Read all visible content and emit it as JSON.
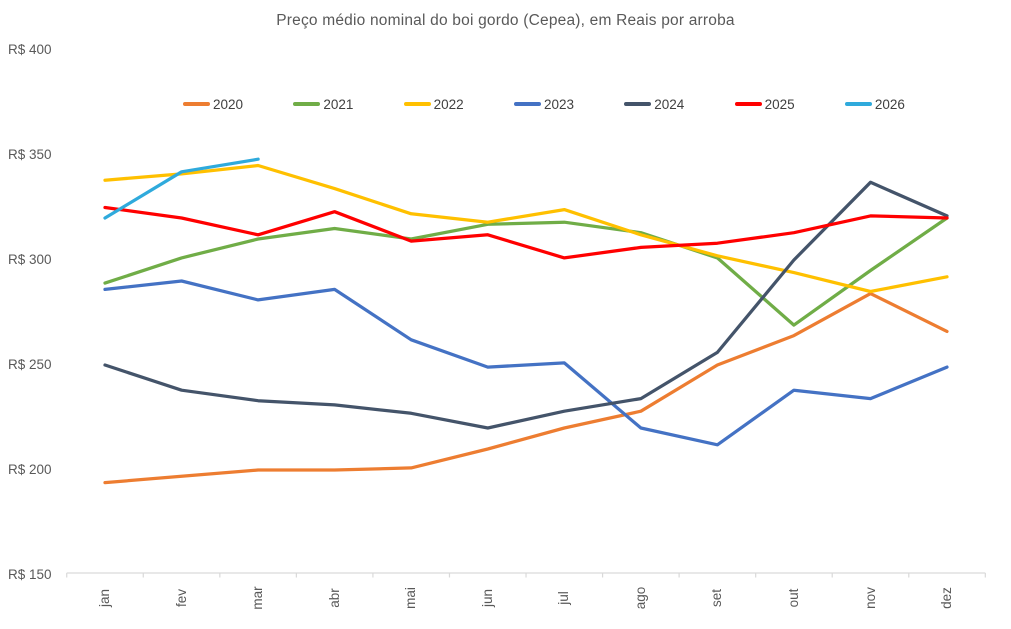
{
  "title": "Preço médio nominal do boi gordo (Cepea), em Reais por arroba",
  "colors": {
    "axis": "#D9D9D9",
    "text": "#595959",
    "legend_text": "#404040"
  },
  "chart_data": {
    "type": "line",
    "title": "Preço médio nominal do boi gordo (Cepea), em Reais por arroba",
    "xlabel": "",
    "ylabel": "Reais por arroba",
    "ylim": [
      150,
      400
    ],
    "grid": false,
    "legend_position": "top",
    "categories": [
      "jan",
      "fev",
      "mar",
      "abr",
      "mai",
      "jun",
      "jul",
      "ago",
      "set",
      "out",
      "nov",
      "dez"
    ],
    "y_ticks": [
      {
        "label": "R$ 400",
        "value": 400
      },
      {
        "label": "R$ 350",
        "value": 350
      },
      {
        "label": "R$ 300",
        "value": 300
      },
      {
        "label": "R$ 250",
        "value": 250
      },
      {
        "label": "R$ 200",
        "value": 200
      },
      {
        "label": "R$ 150",
        "value": 150
      }
    ],
    "series": [
      {
        "name": "2020",
        "color": "#ED7D31",
        "values": [
          194,
          197,
          200,
          200,
          201,
          210,
          220,
          228,
          250,
          264,
          284,
          266
        ]
      },
      {
        "name": "2021",
        "color": "#70AD47",
        "values": [
          289,
          301,
          310,
          315,
          310,
          317,
          318,
          313,
          301,
          269,
          295,
          320
        ]
      },
      {
        "name": "2022",
        "color": "#FFC000",
        "values": [
          338,
          341,
          345,
          334,
          322,
          318,
          324,
          312,
          302,
          294,
          285,
          292
        ]
      },
      {
        "name": "2023",
        "color": "#4472C4",
        "values": [
          286,
          290,
          281,
          286,
          262,
          249,
          251,
          220,
          212,
          238,
          234,
          249
        ]
      },
      {
        "name": "2024",
        "color": "#44546A",
        "values": [
          250,
          238,
          233,
          231,
          227,
          220,
          228,
          234,
          256,
          300,
          337,
          321
        ]
      },
      {
        "name": "2025",
        "color": "#FF0000",
        "values": [
          325,
          320,
          312,
          323,
          309,
          312,
          301,
          306,
          308,
          313,
          321,
          320
        ]
      },
      {
        "name": "2026",
        "color": "#2FAADC",
        "values": [
          320,
          342,
          348,
          null,
          null,
          null,
          null,
          null,
          null,
          null,
          null,
          null
        ]
      }
    ]
  }
}
